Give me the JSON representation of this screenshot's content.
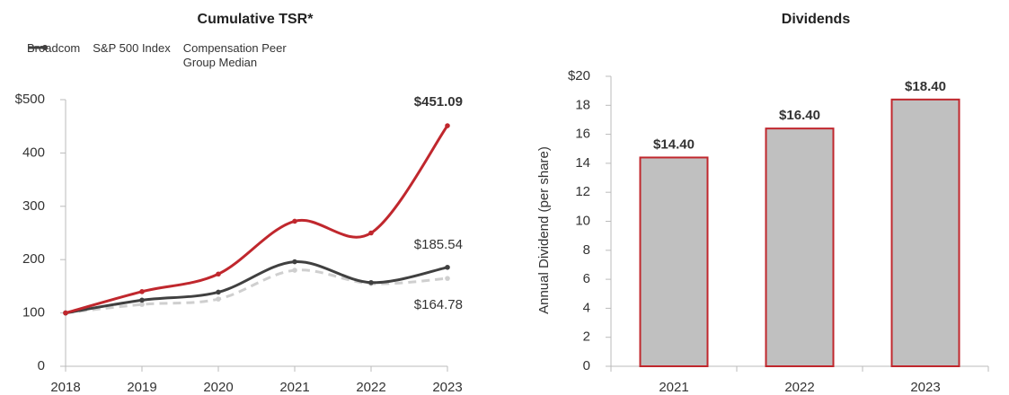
{
  "chart_data": [
    {
      "type": "line",
      "title": "Cumulative TSR*",
      "categories": [
        "2018",
        "2019",
        "2020",
        "2021",
        "2022",
        "2023"
      ],
      "series": [
        {
          "name": "Broadcom",
          "color": "#c0272d",
          "dash": false,
          "values": [
            100,
            140,
            173,
            272,
            250,
            451.09
          ],
          "value_labels": [
            null,
            null,
            null,
            null,
            null,
            "$451.09"
          ]
        },
        {
          "name": "S&P 500 Index",
          "color": "#cfcfcf",
          "dash": true,
          "values": [
            100,
            116,
            126,
            180,
            155,
            164.78
          ],
          "value_labels": [
            null,
            null,
            null,
            null,
            null,
            "$164.78"
          ]
        },
        {
          "name": "Compensation Peer Group Median",
          "color": "#404040",
          "dash": false,
          "values": [
            100,
            124,
            139,
            196,
            157,
            185.54
          ],
          "value_labels": [
            null,
            null,
            null,
            null,
            null,
            "$185.54"
          ]
        }
      ],
      "ylim": [
        0,
        500
      ],
      "yticks": [
        0,
        100,
        200,
        300,
        400,
        {
          "value": 500,
          "label": "$500"
        }
      ],
      "grid": false
    },
    {
      "type": "bar",
      "title": "Dividends",
      "y_label": "Annual Dividend (per share)",
      "categories": [
        "2021",
        "2022",
        "2023"
      ],
      "values": [
        14.4,
        16.4,
        18.4
      ],
      "value_labels": [
        "$14.40",
        "$16.40",
        "$18.40"
      ],
      "color": "#c0c0c0",
      "edge_color": "#c0272d",
      "ylim": [
        0,
        20
      ],
      "yticks": [
        0,
        2,
        4,
        6,
        8,
        10,
        12,
        14,
        16,
        18,
        {
          "value": 20,
          "label": "$20"
        }
      ],
      "grid": false
    }
  ]
}
